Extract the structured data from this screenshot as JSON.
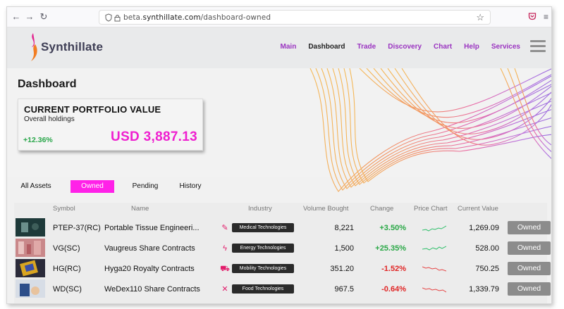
{
  "browser": {
    "url_prefix": "beta.",
    "url_host": "synthillate.com",
    "url_path": "/dashboard-owned"
  },
  "site": {
    "logo_text": "Synthillate",
    "nav": [
      "Main",
      "Dashboard",
      "Trade",
      "Discovery",
      "Chart",
      "Help",
      "Services"
    ],
    "active_nav": "Dashboard",
    "accent_color": "#9a33c0"
  },
  "page": {
    "title": "Dashboard"
  },
  "portfolio": {
    "title": "CURRENT PORTFOLIO VALUE",
    "subtitle": "Overall holdings",
    "change": "+12.36%",
    "value": "USD 3,887.13",
    "value_color": "#ef1fd0"
  },
  "tabs": {
    "items": [
      "All Assets",
      "Owned",
      "Pending",
      "History"
    ],
    "active": "Owned"
  },
  "table": {
    "columns": [
      "Symbol",
      "Name",
      "Industry",
      "Volume Bought",
      "Change",
      "Price Chart",
      "Current Value"
    ],
    "rows": [
      {
        "symbol": "PTEP-37(RC)",
        "name": "Portable Tissue Engineeri...",
        "industry": "Medical Technologies",
        "industry_icon": "syringe-icon",
        "volume": "8,221",
        "change": "+3.50%",
        "trend": "up",
        "current_value": "1,269.09",
        "action": "Owned"
      },
      {
        "symbol": "VG(SC)",
        "name": "Vaugreus Share Contracts",
        "industry": "Energy Technologies",
        "industry_icon": "lightning-icon",
        "volume": "1,500",
        "change": "+25.35%",
        "trend": "up",
        "current_value": "528.00",
        "action": "Owned"
      },
      {
        "symbol": "HG(RC)",
        "name": "Hyga20 Royalty Contracts",
        "industry": "Mobility Technologies",
        "industry_icon": "car-icon",
        "volume": "351.20",
        "change": "-1.52%",
        "trend": "down",
        "current_value": "750.25",
        "action": "Owned"
      },
      {
        "symbol": "WD(SC)",
        "name": "WeDex110 Share Contracts",
        "industry": "Food Technologies",
        "industry_icon": "utensils-icon",
        "volume": "967.5",
        "change": "-0.64%",
        "trend": "down",
        "current_value": "1,339.79",
        "action": "Owned"
      }
    ]
  }
}
